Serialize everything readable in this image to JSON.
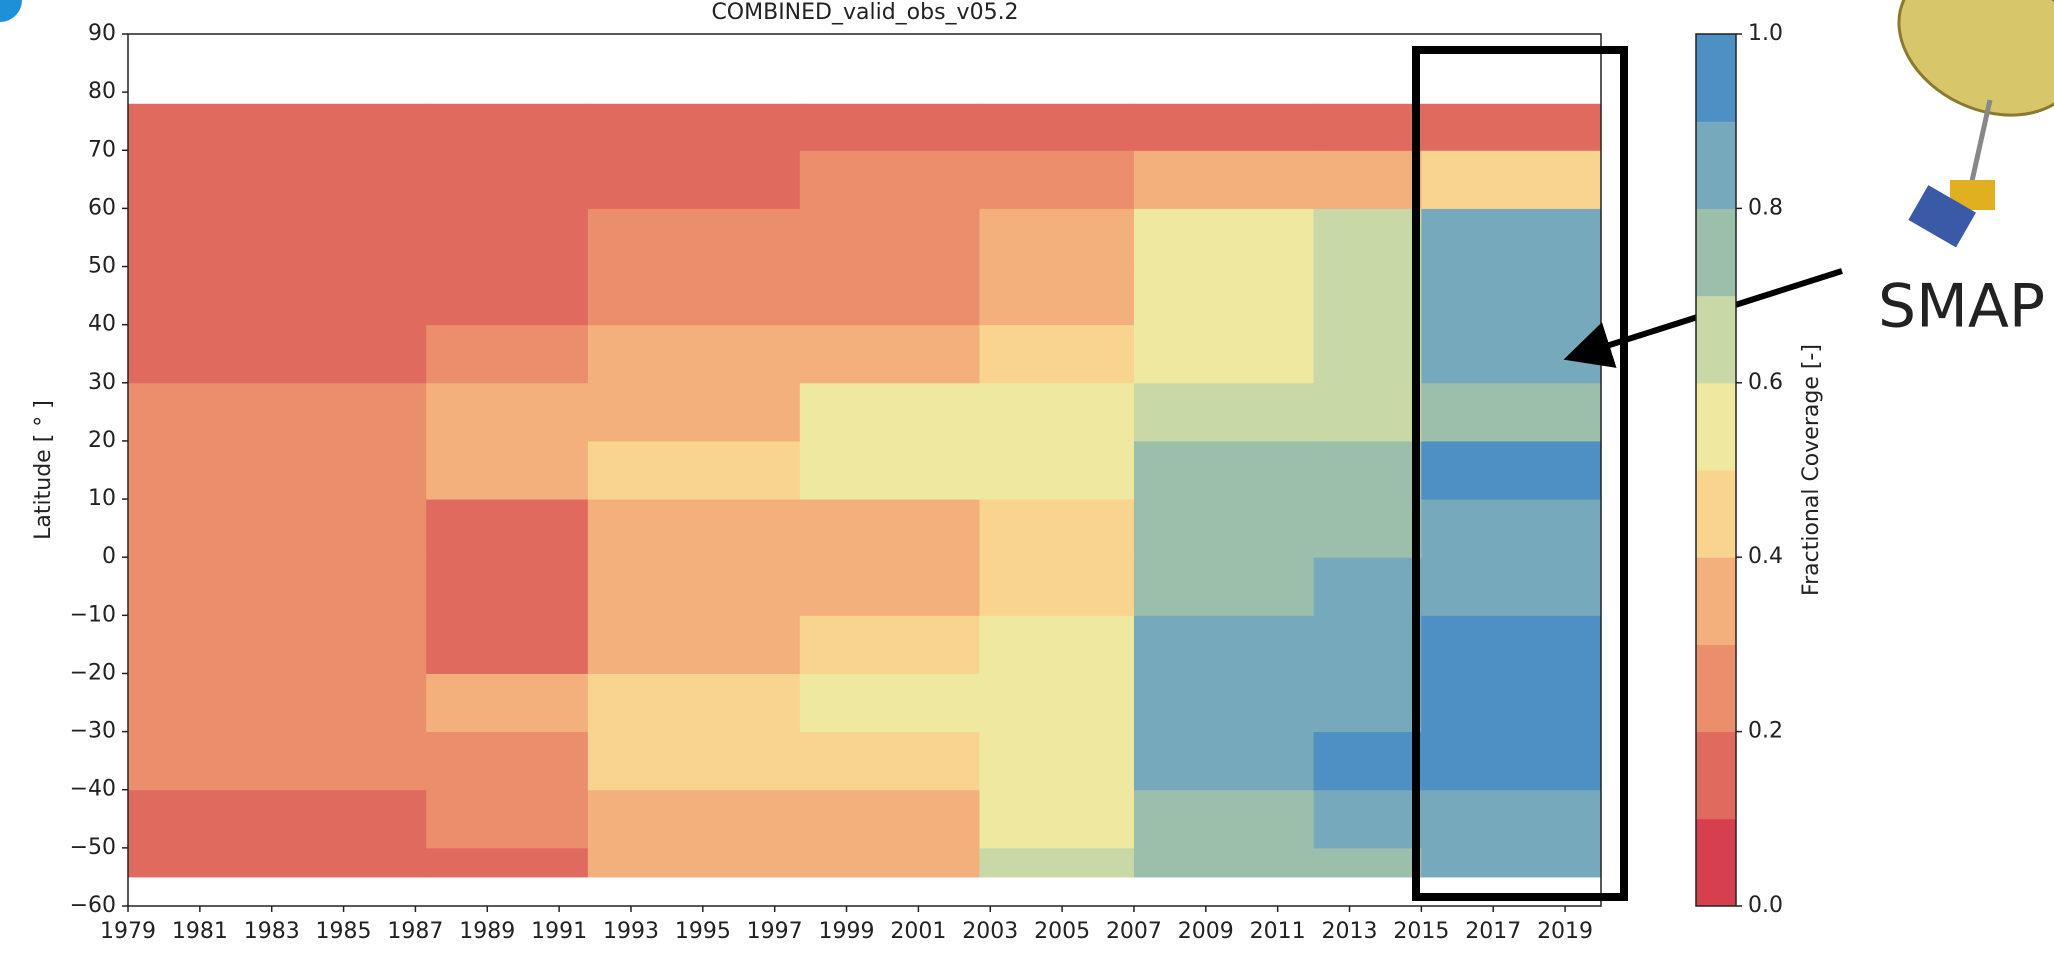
{
  "chart_data": {
    "type": "heatmap",
    "title": "COMBINED_valid_obs_v05.2",
    "y_label": "Latitude [ ° ]",
    "colorbar_label": "Fractional Coverage [-]",
    "annotation": "SMAP",
    "x_bins": [
      1979,
      1987.3,
      1991.8,
      1997.7,
      2002.7,
      2007,
      2012,
      2015,
      2020
    ],
    "y_bins": [
      -55,
      -50,
      -40,
      -30,
      -20,
      -10,
      0,
      10,
      20,
      30,
      40,
      50,
      60,
      70,
      78
    ],
    "z": [
      [
        0.1,
        0.1,
        0.3,
        0.3,
        0.6,
        0.7,
        0.7,
        0.8
      ],
      [
        0.1,
        0.2,
        0.3,
        0.3,
        0.5,
        0.7,
        0.8,
        0.8
      ],
      [
        0.2,
        0.2,
        0.4,
        0.4,
        0.5,
        0.8,
        0.9,
        0.9
      ],
      [
        0.2,
        0.3,
        0.4,
        0.5,
        0.5,
        0.8,
        0.8,
        0.9
      ],
      [
        0.2,
        0.1,
        0.3,
        0.4,
        0.5,
        0.8,
        0.8,
        0.9
      ],
      [
        0.2,
        0.1,
        0.3,
        0.3,
        0.4,
        0.7,
        0.8,
        0.8
      ],
      [
        0.2,
        0.1,
        0.3,
        0.3,
        0.4,
        0.7,
        0.7,
        0.8
      ],
      [
        0.2,
        0.3,
        0.4,
        0.5,
        0.5,
        0.7,
        0.7,
        0.9
      ],
      [
        0.2,
        0.3,
        0.3,
        0.5,
        0.5,
        0.6,
        0.6,
        0.7
      ],
      [
        0.1,
        0.2,
        0.3,
        0.3,
        0.4,
        0.5,
        0.6,
        0.8
      ],
      [
        0.1,
        0.1,
        0.2,
        0.2,
        0.3,
        0.5,
        0.6,
        0.8
      ],
      [
        0.1,
        0.1,
        0.2,
        0.2,
        0.3,
        0.5,
        0.6,
        0.8
      ],
      [
        0.1,
        0.1,
        0.1,
        0.2,
        0.2,
        0.3,
        0.3,
        0.4
      ],
      [
        0.1,
        0.1,
        0.1,
        0.1,
        0.1,
        0.1,
        0.1,
        0.1
      ]
    ],
    "xlim": [
      1979,
      2020
    ],
    "xticks": [
      1979,
      1981,
      1983,
      1985,
      1987,
      1989,
      1991,
      1993,
      1995,
      1997,
      1999,
      2001,
      2003,
      2005,
      2007,
      2009,
      2011,
      2013,
      2015,
      2017,
      2019
    ],
    "ylim": [
      -60,
      90
    ],
    "yticks": [
      {
        "value": -60,
        "label": "−60"
      },
      {
        "value": -50,
        "label": "−50"
      },
      {
        "value": -40,
        "label": "−40"
      },
      {
        "value": -30,
        "label": "−30"
      },
      {
        "value": -20,
        "label": "−20"
      },
      {
        "value": -10,
        "label": "−10"
      },
      0,
      10,
      20,
      30,
      40,
      50,
      60,
      70,
      80,
      90
    ],
    "clim": [
      0,
      1
    ],
    "cticks": [
      {
        "value": 0,
        "label": "0.0"
      },
      0.2,
      0.4,
      0.6,
      0.8,
      {
        "value": 1,
        "label": "1.0"
      }
    ],
    "color_bounds": [
      0,
      0.1,
      0.2,
      0.3,
      0.4,
      0.5,
      0.6,
      0.7,
      0.8,
      0.9,
      1
    ],
    "colors": [
      "#d6404e",
      "#e06a5d",
      "#ea8e6c",
      "#f3b07c",
      "#f9d48e",
      "#efe8a0",
      "#c8d8a6",
      "#9bbfab",
      "#77a9bc",
      "#4e8fc4"
    ]
  }
}
